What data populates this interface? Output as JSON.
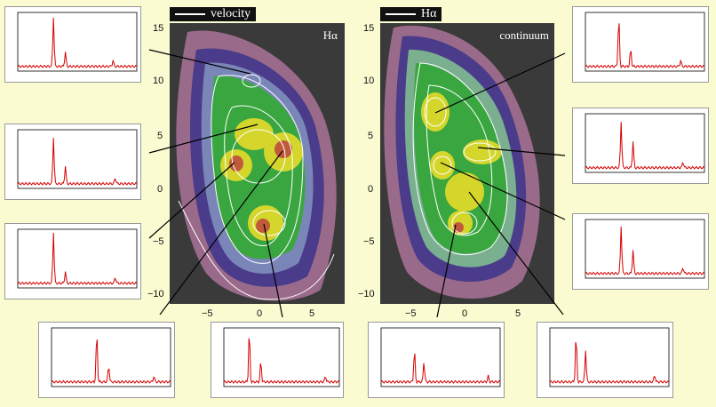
{
  "left_panel": {
    "legend_label": "velocity",
    "map_label": "Hα",
    "y_ticks": [
      "15",
      "10",
      "5",
      "0",
      "−5",
      "−10"
    ],
    "x_ticks": [
      "−5",
      "0",
      "5"
    ]
  },
  "right_panel": {
    "legend_label": "Hα",
    "map_label": "continuum",
    "y_ticks": [
      "15",
      "10",
      "5",
      "0",
      "−5",
      "−10"
    ],
    "x_ticks": [
      "−5",
      "0",
      "5"
    ]
  },
  "colors": {
    "background": "#fbfbd2",
    "spectrum_line": "#d40000",
    "connector": "#000000",
    "contour": "#ffffff"
  },
  "spectra": [
    {
      "id": "spec-left-1",
      "peaks": [
        [
          0.3,
          0.85
        ],
        [
          0.4,
          0.25
        ],
        [
          0.8,
          0.1
        ]
      ]
    },
    {
      "id": "spec-left-2",
      "peaks": [
        [
          0.3,
          0.8
        ],
        [
          0.4,
          0.3
        ],
        [
          0.82,
          0.1
        ]
      ]
    },
    {
      "id": "spec-left-3",
      "peaks": [
        [
          0.3,
          0.88
        ],
        [
          0.4,
          0.2
        ],
        [
          0.82,
          0.1
        ]
      ]
    },
    {
      "id": "spec-bottom-1",
      "peaks": [
        [
          0.38,
          0.85
        ],
        [
          0.48,
          0.28
        ],
        [
          0.86,
          0.1
        ]
      ]
    },
    {
      "id": "spec-bottom-2",
      "peaks": [
        [
          0.22,
          0.88
        ],
        [
          0.32,
          0.35
        ],
        [
          0.88,
          0.1
        ]
      ]
    },
    {
      "id": "spec-bottom-3",
      "peaks": [
        [
          0.28,
          0.55
        ],
        [
          0.36,
          0.35
        ],
        [
          0.9,
          0.1
        ]
      ]
    },
    {
      "id": "spec-bottom-4",
      "peaks": [
        [
          0.22,
          0.8
        ],
        [
          0.3,
          0.55
        ],
        [
          0.88,
          0.12
        ]
      ]
    },
    {
      "id": "spec-right-1",
      "peaks": [
        [
          0.28,
          0.85
        ],
        [
          0.38,
          0.3
        ],
        [
          0.8,
          0.1
        ]
      ]
    },
    {
      "id": "spec-right-2",
      "peaks": [
        [
          0.3,
          0.8
        ],
        [
          0.4,
          0.45
        ],
        [
          0.82,
          0.1
        ]
      ]
    },
    {
      "id": "spec-right-3",
      "peaks": [
        [
          0.3,
          0.82
        ],
        [
          0.4,
          0.4
        ],
        [
          0.82,
          0.1
        ]
      ]
    }
  ]
}
